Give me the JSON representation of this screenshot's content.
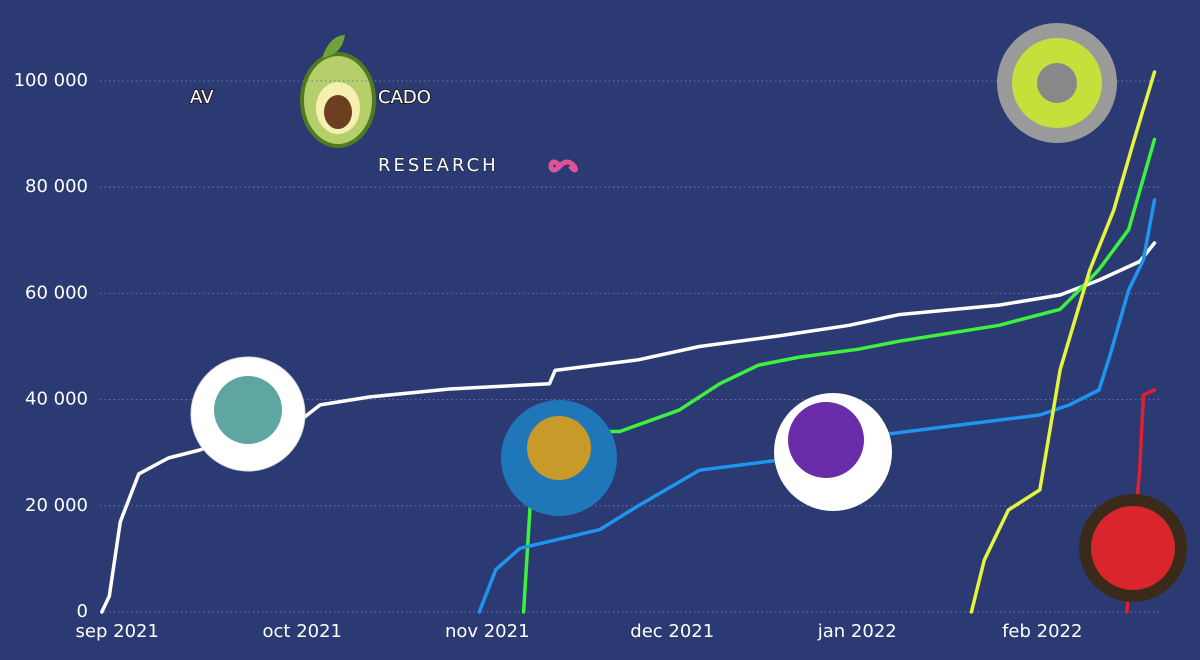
{
  "chart_data": {
    "type": "line",
    "logo": {
      "left": "AV",
      "right": "CADO",
      "subtitle": "RESEARCH"
    },
    "xlim": [
      -0.05,
      5.7
    ],
    "xticks": [
      {
        "value": 0,
        "label": "sep 2021"
      },
      {
        "value": 1,
        "label": "oct 2021"
      },
      {
        "value": 2,
        "label": "nov 2021"
      },
      {
        "value": 3,
        "label": "dec 2021"
      },
      {
        "value": 4,
        "label": "jan 2022"
      },
      {
        "value": 5,
        "label": "feb 2022"
      }
    ],
    "ylim": [
      0,
      110000
    ],
    "yticks": [
      0,
      {
        "value": 20000,
        "label": "20 000"
      },
      {
        "value": 40000,
        "label": "40 000"
      },
      {
        "value": 60000,
        "label": "60 000"
      },
      {
        "value": 80000,
        "label": "80 000"
      },
      {
        "value": 100000,
        "label": "100 000"
      }
    ],
    "grid": true,
    "series": [
      {
        "color": "#ffffff",
        "x": [
          -0.04,
          0,
          0.06,
          0.16,
          0.32,
          0.49,
          0.76,
          1.03,
          1.14,
          1.41,
          1.84,
          2.38,
          2.41,
          2.86,
          3.19,
          3.62,
          4.0,
          4.27,
          4.81,
          5.14,
          5.35,
          5.57,
          5.65
        ],
        "values": [
          0,
          3000,
          17000,
          26000,
          29000,
          30500,
          34000,
          36000,
          39000,
          40500,
          42000,
          43000,
          45500,
          47500,
          50000,
          52000,
          54000,
          56000,
          57800,
          59700,
          62500,
          66000,
          69500
        ]
      },
      {
        "color": "#3df23d",
        "x": [
          2.24,
          2.3,
          2.76,
          3.08,
          3.3,
          3.51,
          3.73,
          4.05,
          4.27,
          4.81,
          5.14,
          5.24,
          5.35,
          5.51,
          5.65
        ],
        "values": [
          0,
          34000,
          34000,
          38000,
          43000,
          46500,
          48000,
          49500,
          51000,
          54000,
          57000,
          60500,
          64500,
          72000,
          89000
        ]
      },
      {
        "color": "#1f95f0",
        "x": [
          2.0,
          2.09,
          2.22,
          2.65,
          2.86,
          3.19,
          3.62,
          4.16,
          4.59,
          5.03,
          5.19,
          5.35,
          5.41,
          5.51,
          5.59,
          5.65
        ],
        "values": [
          0,
          8000,
          12000,
          15500,
          20000,
          26700,
          28600,
          33300,
          35200,
          37100,
          39000,
          41800,
          48400,
          60600,
          66300,
          77600
        ]
      },
      {
        "color": "#e3f53c",
        "x": [
          4.66,
          4.73,
          4.86,
          5.03,
          5.14,
          5.3,
          5.43,
          5.54,
          5.65
        ],
        "values": [
          0,
          9800,
          19200,
          23000,
          45600,
          64400,
          75700,
          88900,
          101700
        ]
      },
      {
        "color": "#e3202e",
        "x": [
          5.5,
          5.57,
          5.59,
          5.65
        ],
        "values": [
          0,
          26700,
          40900,
          41800
        ]
      }
    ]
  }
}
